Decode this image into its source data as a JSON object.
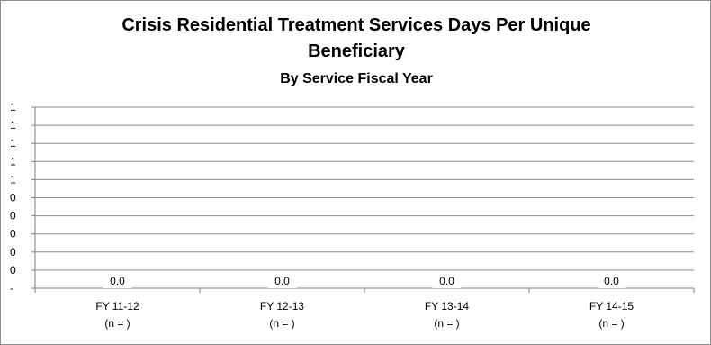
{
  "chart_data": {
    "type": "bar",
    "title": "Crisis Residential Treatment Services Days Per Unique",
    "title_line2": "Beneficiary",
    "subtitle": "By Service Fiscal Year",
    "xlabel": "",
    "ylabel": "",
    "categories": [
      "FY 11-12",
      "FY 12-13",
      "FY 13-14",
      "FY 14-15"
    ],
    "category_notes": [
      "(n = )",
      "(n = )",
      "(n = )",
      "(n = )"
    ],
    "values": [
      0,
      0,
      0,
      0
    ],
    "data_labels": [
      "0.0",
      "0.0",
      "0.0",
      "0.0"
    ],
    "y_tick_labels": [
      "-",
      "0",
      "0",
      "0",
      "0",
      "0",
      "1",
      "1",
      "1",
      "1",
      "1"
    ],
    "ylim": [
      0,
      1
    ],
    "grid": true,
    "legend": "none"
  }
}
